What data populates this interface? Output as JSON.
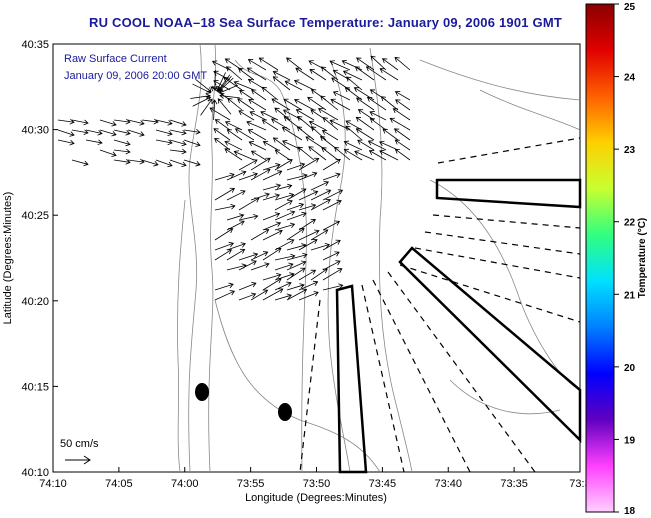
{
  "title": "RU COOL  NOAA–18  Sea Surface Temperature:  January 09, 2006 1901 GMT",
  "legend": {
    "line1": "Raw Surface Current",
    "line2": "January 09, 2006 20:00 GMT",
    "scale_label": "50 cm/s"
  },
  "axes": {
    "xlabel": "Longitude (Degrees:Minutes)",
    "ylabel": "Latitude (Degrees:Minutes)",
    "xticks": [
      "74:10",
      "74:05",
      "74:00",
      "73:55",
      "73:50",
      "73:45",
      "73:40",
      "73:35",
      "73:3"
    ],
    "yticks": [
      "40:35",
      "40:30",
      "40:25",
      "40:20",
      "40:15",
      "40:10"
    ]
  },
  "colorbar": {
    "label": "Temperature (°C)",
    "ticks": [
      "25",
      "24",
      "23",
      "22",
      "21",
      "20",
      "19",
      "18"
    ],
    "colors": [
      "#8b0000",
      "#e00000",
      "#ff6000",
      "#ffd000",
      "#c8ff30",
      "#30ff80",
      "#00e0ff",
      "#0080ff",
      "#0000ff",
      "#6000c0",
      "#ff40ff",
      "#ffd0ff"
    ]
  }
}
